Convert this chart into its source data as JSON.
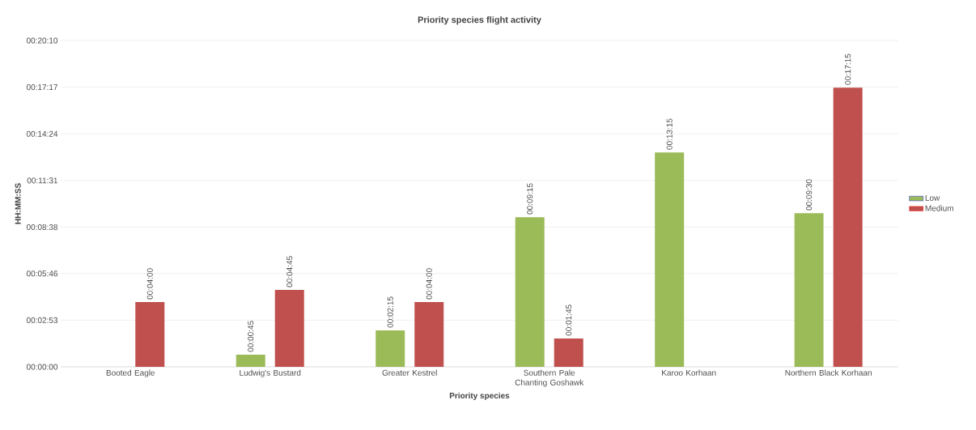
{
  "chart_data": {
    "type": "bar",
    "title": "Priority species flight activity",
    "xlabel": "Priority species",
    "ylabel": "HH:MM:SS",
    "categories": [
      "Booted Eagle",
      "Ludwig's Bustard",
      "Greater Kestrel",
      "Southern Pale Chanting Goshawk",
      "Karoo Korhaan",
      "Northern Black Korhaan"
    ],
    "series": [
      {
        "name": "Low",
        "color": "#9bbb59",
        "values": [
          null,
          45,
          135,
          555,
          795,
          570
        ],
        "value_labels": [
          null,
          "00:00:45",
          "00:02:15",
          "00:09:15",
          "00:13:15",
          "00:09:30"
        ]
      },
      {
        "name": "Medium",
        "color": "#c0504d",
        "values": [
          240,
          285,
          240,
          105,
          null,
          1035
        ],
        "value_labels": [
          "00:04:00",
          "00:04:45",
          "00:04:00",
          "00:01:45",
          null,
          "00:17:15"
        ]
      }
    ],
    "ylim": [
      0,
      1210
    ],
    "yticks": [
      {
        "value": 0,
        "label": "00:00:00"
      },
      {
        "value": 173,
        "label": "00:02:53"
      },
      {
        "value": 346,
        "label": "00:05:46"
      },
      {
        "value": 518,
        "label": "00:08:38"
      },
      {
        "value": 691,
        "label": "00:11:31"
      },
      {
        "value": 864,
        "label": "00:14:24"
      },
      {
        "value": 1037,
        "label": "00:17:17"
      },
      {
        "value": 1210,
        "label": "00:20:10"
      }
    ],
    "grid": "y",
    "legend": "right"
  }
}
